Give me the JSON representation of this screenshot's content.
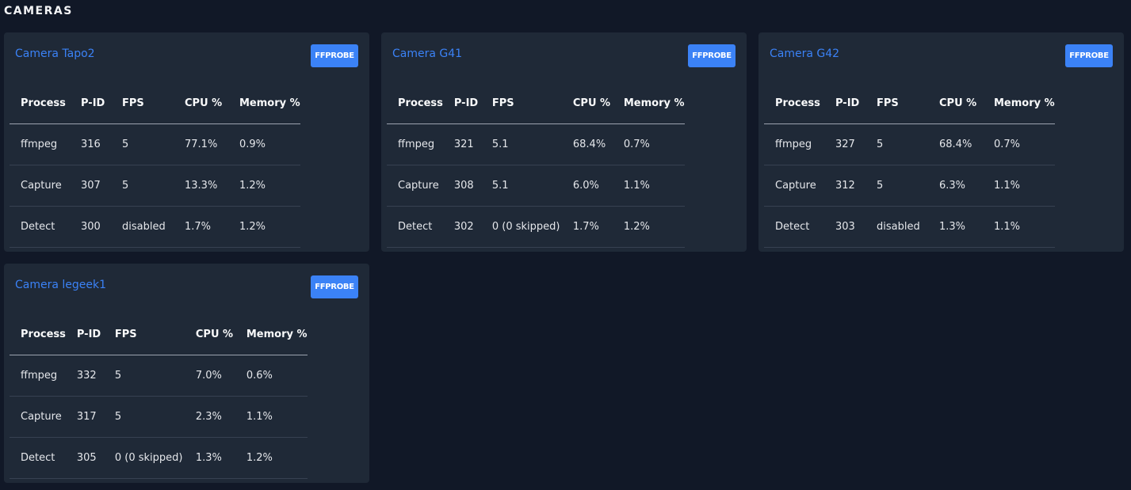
{
  "section_title": "CAMERAS",
  "ffprobe_label": "FFPROBE",
  "columns": [
    "Process",
    "P-ID",
    "FPS",
    "CPU %",
    "Memory %"
  ],
  "cameras": [
    {
      "title": "Camera Tapo2",
      "rows": [
        [
          "ffmpeg",
          "316",
          "5",
          "77.1%",
          "0.9%"
        ],
        [
          "Capture",
          "307",
          "5",
          "13.3%",
          "1.2%"
        ],
        [
          "Detect",
          "300",
          "disabled",
          "1.7%",
          "1.2%"
        ]
      ]
    },
    {
      "title": "Camera G41",
      "rows": [
        [
          "ffmpeg",
          "321",
          "5.1",
          "68.4%",
          "0.7%"
        ],
        [
          "Capture",
          "308",
          "5.1",
          "6.0%",
          "1.1%"
        ],
        [
          "Detect",
          "302",
          "0 (0 skipped)",
          "1.7%",
          "1.2%"
        ]
      ]
    },
    {
      "title": "Camera G42",
      "rows": [
        [
          "ffmpeg",
          "327",
          "5",
          "68.4%",
          "0.7%"
        ],
        [
          "Capture",
          "312",
          "5",
          "6.3%",
          "1.1%"
        ],
        [
          "Detect",
          "303",
          "disabled",
          "1.3%",
          "1.1%"
        ]
      ]
    },
    {
      "title": "Camera legeek1",
      "rows": [
        [
          "ffmpeg",
          "332",
          "5",
          "7.0%",
          "0.6%"
        ],
        [
          "Capture",
          "317",
          "5",
          "2.3%",
          "1.1%"
        ],
        [
          "Detect",
          "305",
          "0 (0 skipped)",
          "1.3%",
          "1.2%"
        ]
      ]
    }
  ],
  "colors": {
    "background": "#111827",
    "card": "#1f2937",
    "accent": "#3b82f6"
  }
}
